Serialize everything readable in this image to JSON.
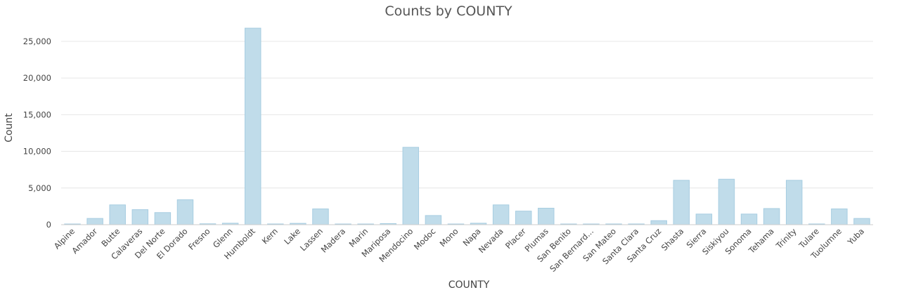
{
  "chart_data": {
    "type": "bar",
    "title": "Counts by COUNTY",
    "xlabel": "COUNTY",
    "ylabel": "Count",
    "ylim": [
      0,
      27000
    ],
    "yticks": [
      0,
      5000,
      10000,
      15000,
      20000,
      25000
    ],
    "ytick_labels": [
      "0",
      "5,000",
      "10,000",
      "15,000",
      "20,000",
      "25,000"
    ],
    "grid": true,
    "legend": "none",
    "bar_color": "#c0dcea",
    "bar_border_color": "#a7cde1",
    "categories": [
      "Alpine",
      "Amador",
      "Butte",
      "Calaveras",
      "Del Norte",
      "El Dorado",
      "Fresno",
      "Glenn",
      "Humboldt",
      "Kern",
      "Lake",
      "Lassen",
      "Madera",
      "Marin",
      "Mariposa",
      "Mendocino",
      "Modoc",
      "Mono",
      "Napa",
      "Nevada",
      "Placer",
      "Plumas",
      "San Benito",
      "San Bernard...",
      "San Mateo",
      "Santa Clara",
      "Santa Cruz",
      "Shasta",
      "Sierra",
      "Siskiyou",
      "Sonoma",
      "Tehama",
      "Trinity",
      "Tulare",
      "Tuolumne",
      "Yuba"
    ],
    "values": [
      20,
      850,
      2700,
      2050,
      1650,
      3400,
      120,
      200,
      26800,
      100,
      180,
      2150,
      40,
      30,
      150,
      10550,
      1250,
      40,
      200,
      2700,
      1850,
      2250,
      30,
      40,
      100,
      100,
      550,
      6050,
      1450,
      6200,
      1450,
      2200,
      6050,
      100,
      2150,
      850
    ]
  }
}
